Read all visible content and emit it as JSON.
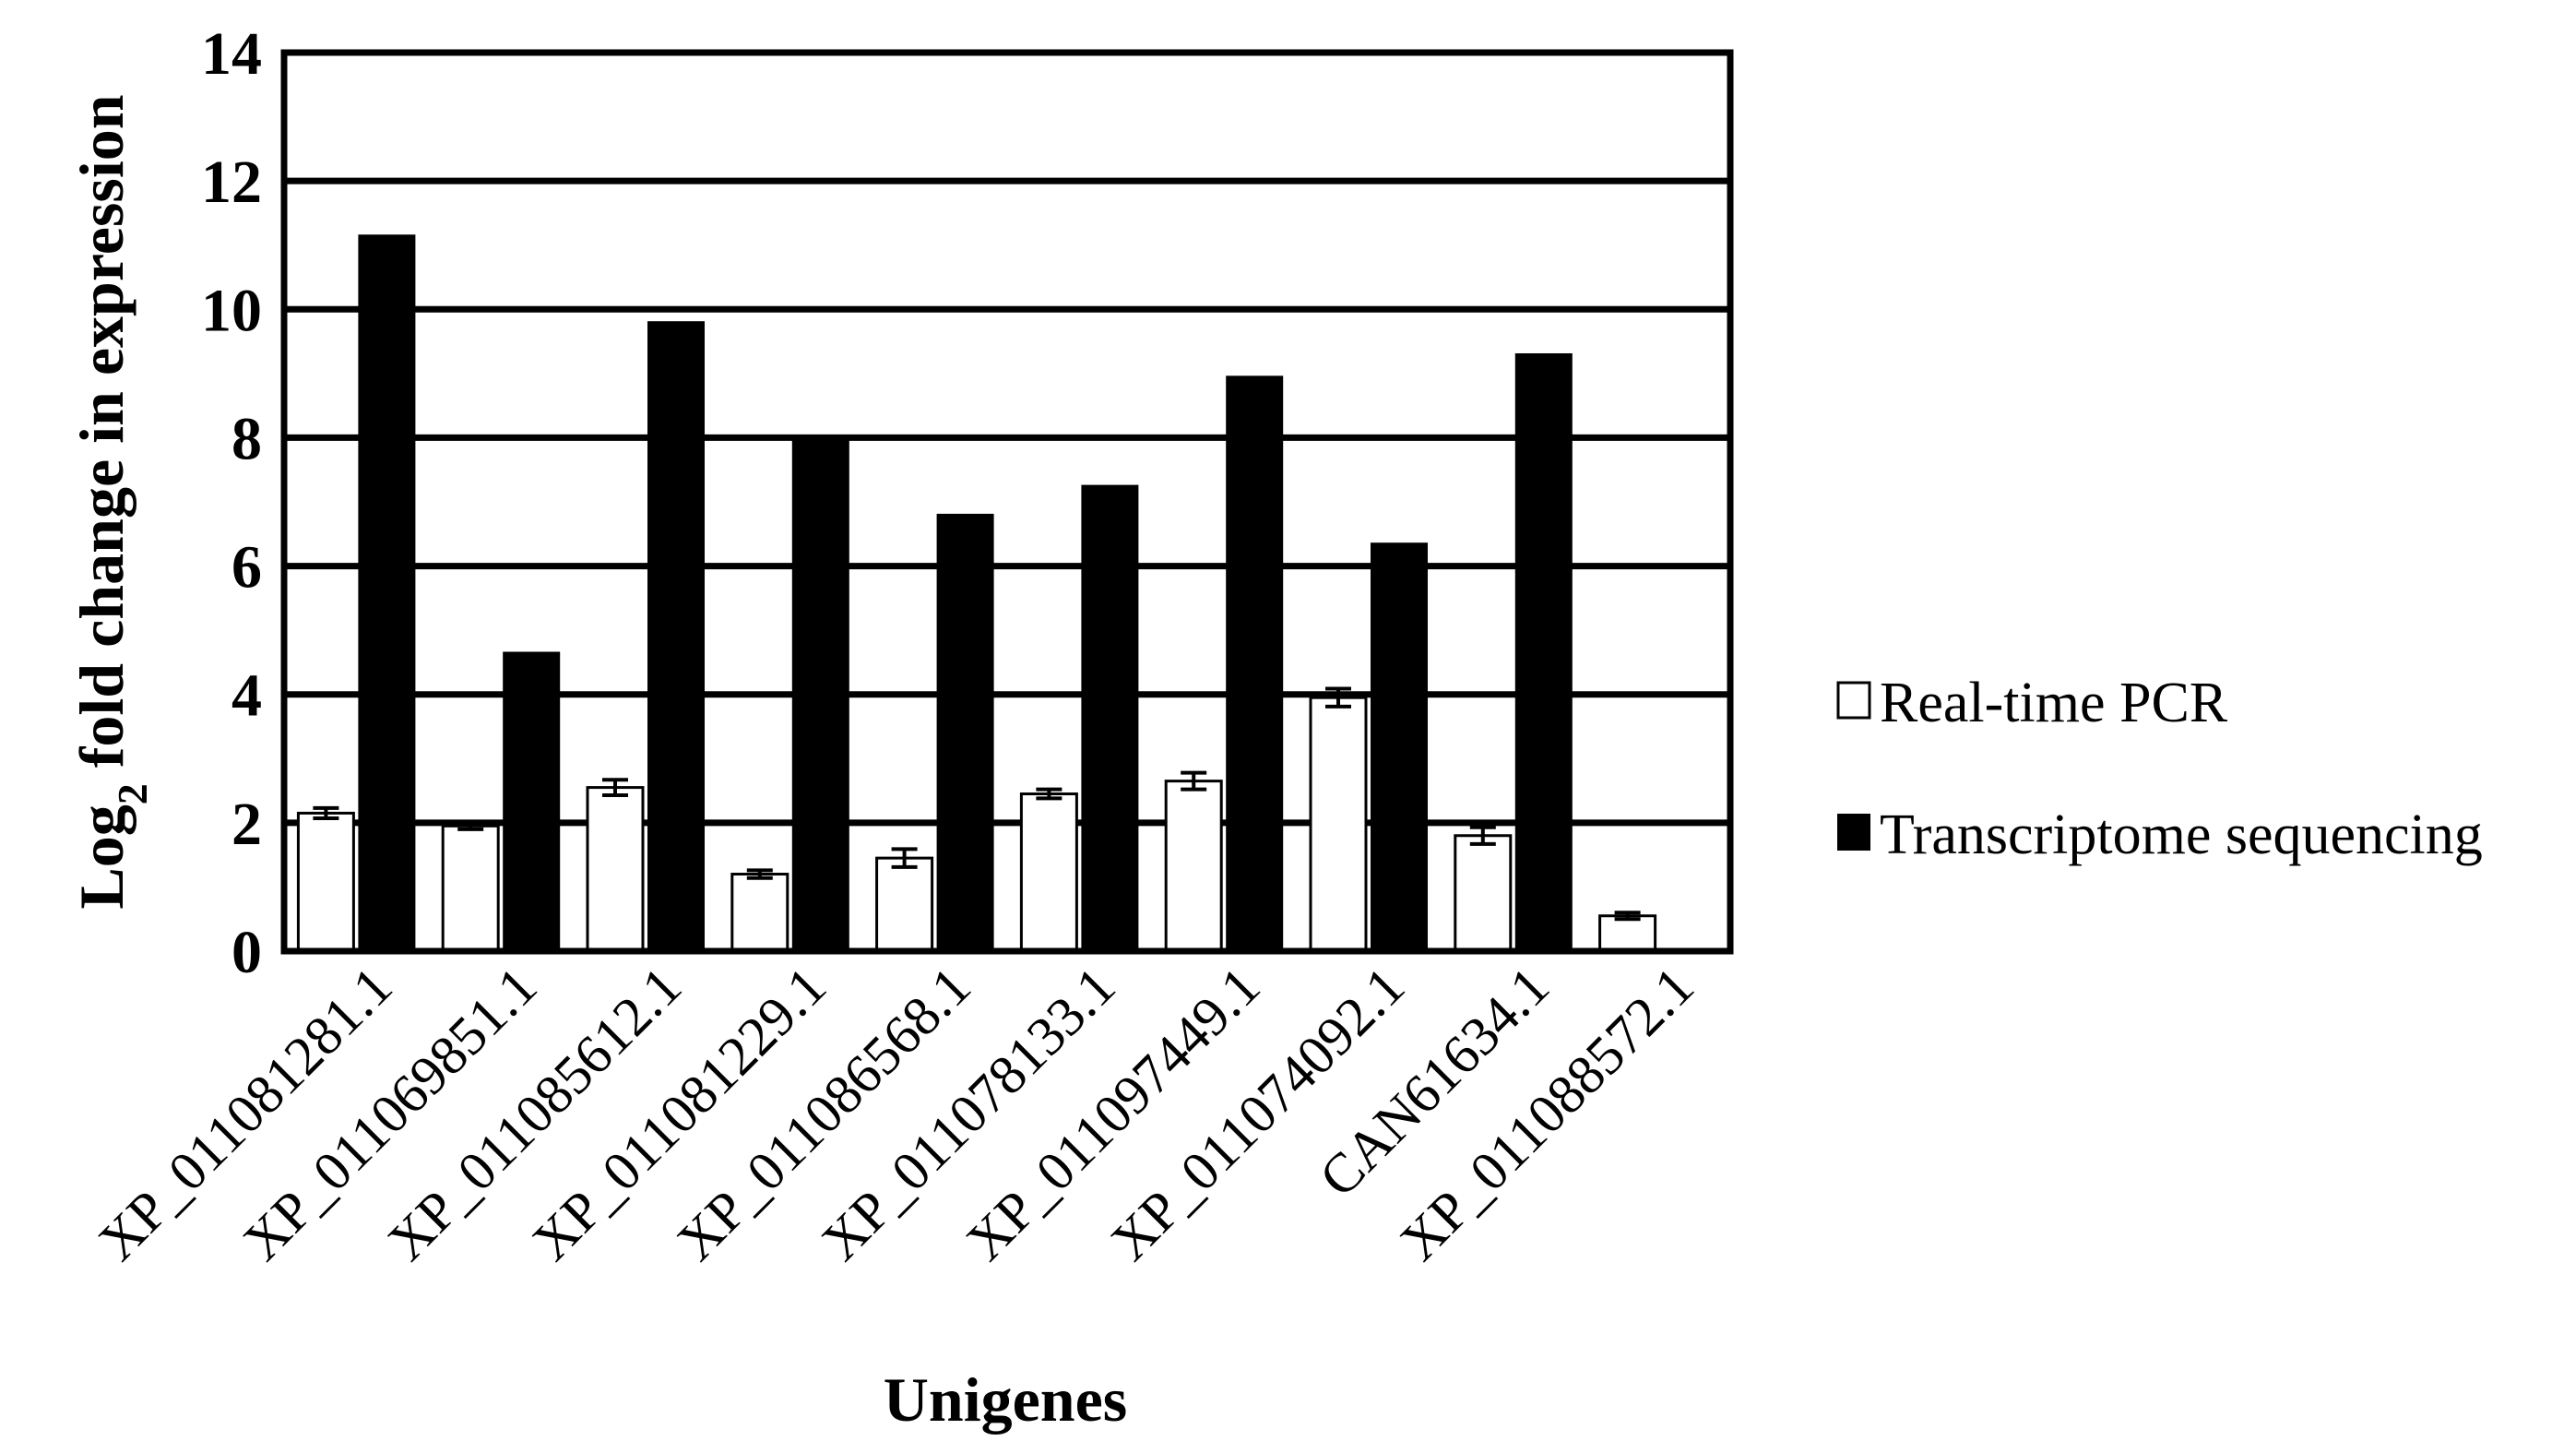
{
  "chart_data": {
    "type": "bar",
    "title": "",
    "xlabel": "Unigenes",
    "ylabel_main": "Log",
    "ylabel_sub": "2",
    "ylabel_rest": " fold change in expression",
    "ylim": [
      0,
      14
    ],
    "ytick_values": [
      0,
      2,
      4,
      6,
      8,
      10,
      12,
      14
    ],
    "ytick_labels": [
      "0",
      "2",
      "4",
      "6",
      "8",
      "10",
      "12",
      "14"
    ],
    "grid": true,
    "legend_position": "right",
    "categories": [
      "XP_011081281.1",
      "XP_011069851.1",
      "XP_011085612.1",
      "XP_011081229.1",
      "XP_011086568.1",
      "XP_011078133.1",
      "XP_011097449.1",
      "XP_011074092.1",
      "CAN61634.1",
      "XP_011088572.1"
    ],
    "series": [
      {
        "name": "Real-time PCR",
        "values": [
          2.15,
          1.95,
          2.55,
          1.2,
          1.45,
          2.45,
          2.65,
          3.95,
          1.8,
          0.55
        ],
        "errors": [
          0.08,
          0.05,
          0.12,
          0.06,
          0.14,
          0.07,
          0.13,
          0.14,
          0.13,
          0.05
        ],
        "color": "#ffffff",
        "stroke": "#000000"
      },
      {
        "name": "Transcriptome sequencing",
        "values": [
          11.15,
          4.65,
          9.8,
          8.0,
          6.8,
          7.25,
          8.95,
          6.35,
          9.3,
          null
        ],
        "color": "#000000",
        "stroke": "#000000"
      }
    ]
  }
}
